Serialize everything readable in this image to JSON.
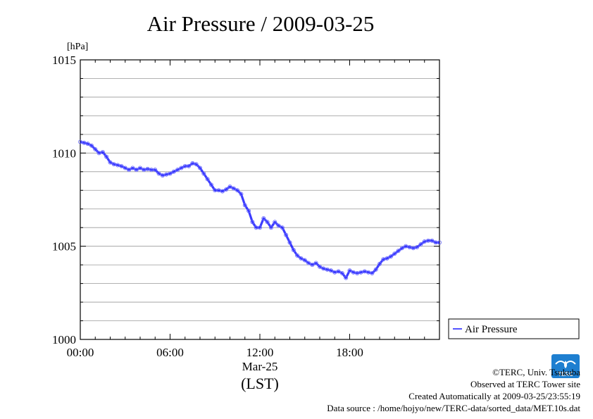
{
  "chart_data": {
    "type": "line",
    "title": "Air Pressure / 2009-03-25",
    "ylabel": "[hPa]",
    "xlabel": "(LST)",
    "x_date_label": "Mar-25",
    "ylim": [
      1000,
      1015
    ],
    "xlim": [
      0,
      24
    ],
    "y_ticks": [
      "1000",
      "1005",
      "1010",
      "1015"
    ],
    "x_ticks": [
      {
        "hour": 0,
        "label": "00:00"
      },
      {
        "hour": 6,
        "label": "06:00"
      },
      {
        "hour": 12,
        "label": "12:00"
      },
      {
        "hour": 18,
        "label": "18:00"
      }
    ],
    "grid": true,
    "legend_position": "bottom-right-outside",
    "series": [
      {
        "name": "Air Pressure",
        "color": "#1a1aff",
        "points": [
          [
            0.0,
            1010.6
          ],
          [
            0.25,
            1010.55
          ],
          [
            0.5,
            1010.5
          ],
          [
            0.75,
            1010.4
          ],
          [
            1.0,
            1010.2
          ],
          [
            1.25,
            1010.0
          ],
          [
            1.5,
            1010.05
          ],
          [
            1.75,
            1009.8
          ],
          [
            2.0,
            1009.5
          ],
          [
            2.25,
            1009.4
          ],
          [
            2.5,
            1009.35
          ],
          [
            2.75,
            1009.3
          ],
          [
            3.0,
            1009.2
          ],
          [
            3.25,
            1009.1
          ],
          [
            3.5,
            1009.2
          ],
          [
            3.75,
            1009.1
          ],
          [
            4.0,
            1009.2
          ],
          [
            4.25,
            1009.1
          ],
          [
            4.5,
            1009.15
          ],
          [
            4.75,
            1009.1
          ],
          [
            5.0,
            1009.1
          ],
          [
            5.25,
            1008.9
          ],
          [
            5.5,
            1008.8
          ],
          [
            5.75,
            1008.85
          ],
          [
            6.0,
            1008.9
          ],
          [
            6.25,
            1009.0
          ],
          [
            6.5,
            1009.1
          ],
          [
            6.75,
            1009.2
          ],
          [
            7.0,
            1009.3
          ],
          [
            7.25,
            1009.3
          ],
          [
            7.5,
            1009.45
          ],
          [
            7.75,
            1009.4
          ],
          [
            8.0,
            1009.2
          ],
          [
            8.25,
            1008.9
          ],
          [
            8.5,
            1008.6
          ],
          [
            8.75,
            1008.3
          ],
          [
            9.0,
            1008.0
          ],
          [
            9.25,
            1008.0
          ],
          [
            9.5,
            1007.95
          ],
          [
            9.75,
            1008.05
          ],
          [
            10.0,
            1008.2
          ],
          [
            10.25,
            1008.1
          ],
          [
            10.5,
            1008.0
          ],
          [
            10.75,
            1007.8
          ],
          [
            11.0,
            1007.2
          ],
          [
            11.25,
            1006.9
          ],
          [
            11.5,
            1006.3
          ],
          [
            11.75,
            1006.0
          ],
          [
            12.0,
            1006.0
          ],
          [
            12.25,
            1006.5
          ],
          [
            12.5,
            1006.3
          ],
          [
            12.75,
            1006.0
          ],
          [
            13.0,
            1006.3
          ],
          [
            13.25,
            1006.1
          ],
          [
            13.5,
            1006.0
          ],
          [
            13.75,
            1005.6
          ],
          [
            14.0,
            1005.2
          ],
          [
            14.25,
            1004.8
          ],
          [
            14.5,
            1004.5
          ],
          [
            14.75,
            1004.35
          ],
          [
            15.0,
            1004.25
          ],
          [
            15.25,
            1004.1
          ],
          [
            15.5,
            1004.0
          ],
          [
            15.75,
            1004.1
          ],
          [
            16.0,
            1003.9
          ],
          [
            16.25,
            1003.8
          ],
          [
            16.5,
            1003.75
          ],
          [
            16.75,
            1003.7
          ],
          [
            17.0,
            1003.6
          ],
          [
            17.25,
            1003.65
          ],
          [
            17.5,
            1003.55
          ],
          [
            17.75,
            1003.3
          ],
          [
            18.0,
            1003.7
          ],
          [
            18.25,
            1003.6
          ],
          [
            18.5,
            1003.55
          ],
          [
            18.75,
            1003.6
          ],
          [
            19.0,
            1003.65
          ],
          [
            19.25,
            1003.6
          ],
          [
            19.5,
            1003.55
          ],
          [
            19.75,
            1003.75
          ],
          [
            20.0,
            1004.05
          ],
          [
            20.25,
            1004.3
          ],
          [
            20.5,
            1004.35
          ],
          [
            20.75,
            1004.45
          ],
          [
            21.0,
            1004.6
          ],
          [
            21.25,
            1004.75
          ],
          [
            21.5,
            1004.9
          ],
          [
            21.75,
            1005.0
          ],
          [
            22.0,
            1004.95
          ],
          [
            22.25,
            1004.9
          ],
          [
            22.5,
            1004.95
          ],
          [
            22.75,
            1005.1
          ],
          [
            23.0,
            1005.25
          ],
          [
            23.25,
            1005.3
          ],
          [
            23.5,
            1005.3
          ],
          [
            23.75,
            1005.2
          ],
          [
            24.0,
            1005.2
          ]
        ]
      }
    ]
  },
  "credits": {
    "copyright": "©TERC, Univ. Tsukuba",
    "observed": "Observed at TERC Tower site",
    "created": "Created Automatically at 2009-03-25/23:55:19",
    "source": "Data source : /home/hojyo/new/TERC-data/sorted_data/MET.10s.dat",
    "logo_text": "TERC"
  }
}
